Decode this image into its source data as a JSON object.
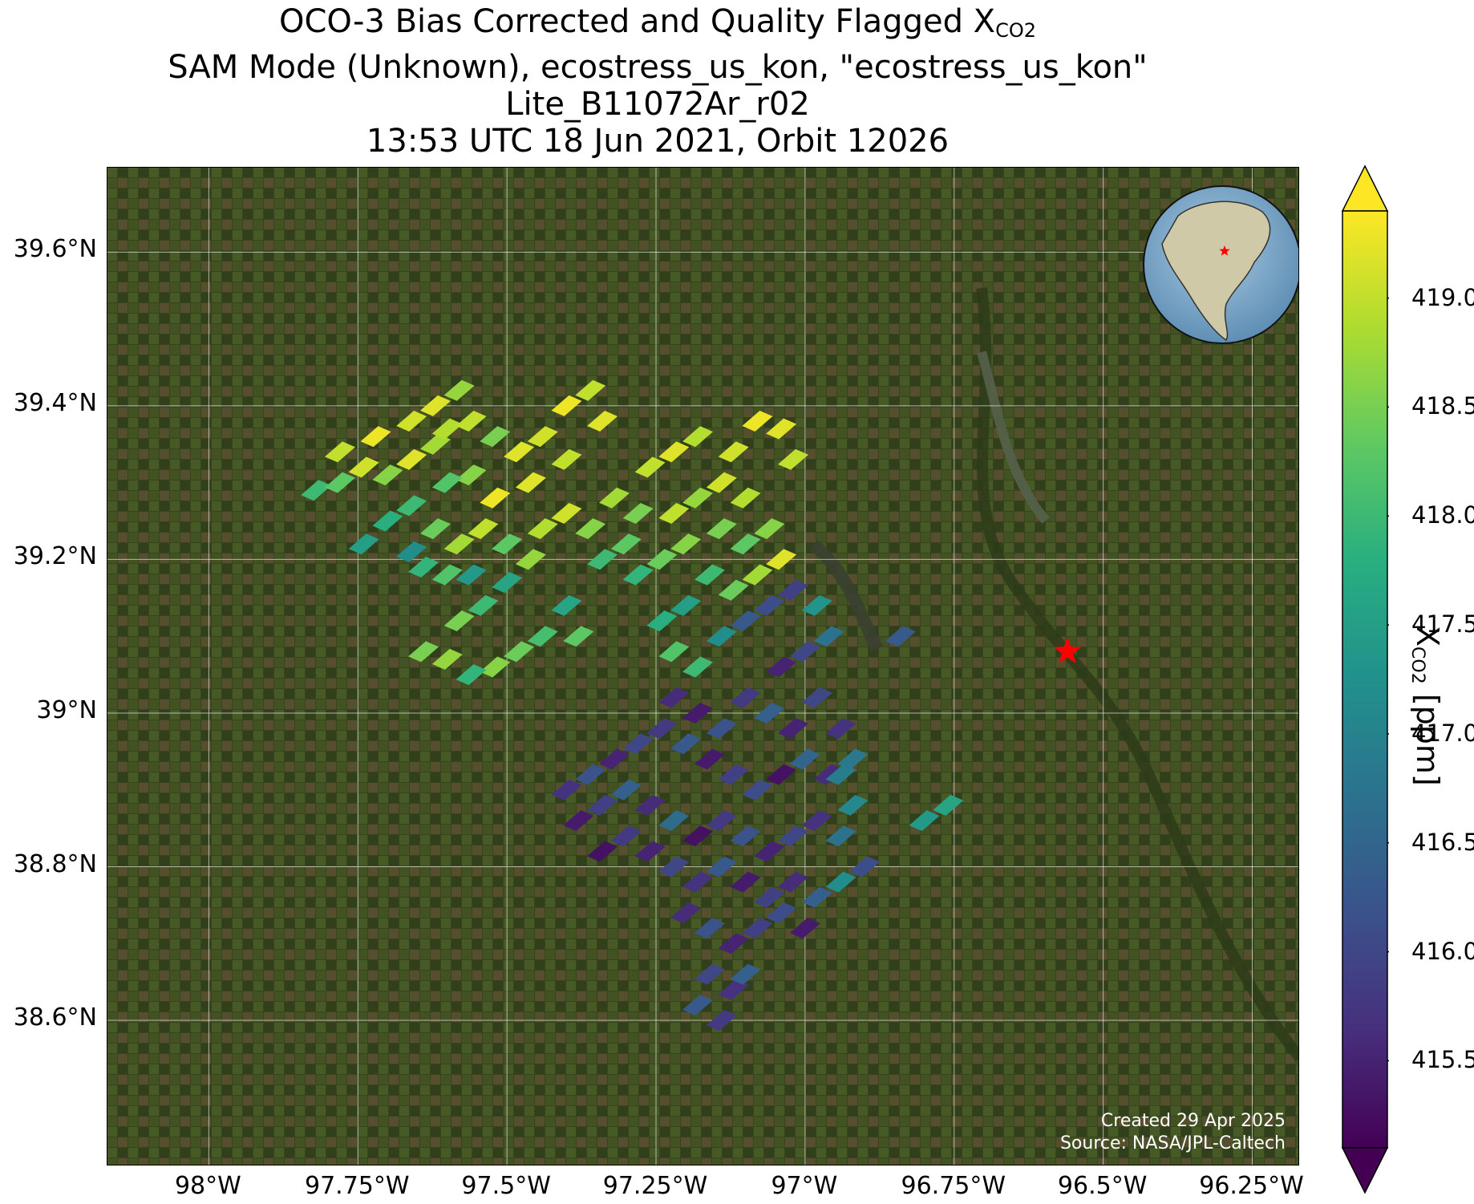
{
  "title": {
    "line1_prefix": "OCO-3 Bias Corrected and Quality Flagged X",
    "line1_sub": "CO2",
    "line2": "SAM Mode (Unknown), ecostress_us_kon, \"ecostress_us_kon\"",
    "line3": "Lite_B11072Ar_r02",
    "line4": "13:53 UTC 18 Jun 2021, Orbit 12026"
  },
  "colorbar": {
    "label_prefix": "X",
    "label_sub": "CO2",
    "label_suffix": " [ppm]",
    "ticks": [
      "415.5",
      "416.0",
      "416.5",
      "417.0",
      "417.5",
      "418.0",
      "418.5",
      "419.0"
    ],
    "range": [
      415.1,
      419.4
    ],
    "colormap": "viridis",
    "extend": "both"
  },
  "credits": {
    "created": "Created 29 Apr 2025",
    "source": "Source: NASA/JPL-Caltech"
  },
  "chart_data": {
    "type": "map",
    "xlabel": "",
    "ylabel": "",
    "lon_range": [
      -98.17,
      -96.17
    ],
    "lat_range": [
      38.41,
      39.71
    ],
    "x_ticks": [
      "98°W",
      "97.75°W",
      "97.5°W",
      "97.25°W",
      "97°W",
      "96.75°W",
      "96.5°W",
      "96.25°W"
    ],
    "x_tick_values": [
      -98.0,
      -97.75,
      -97.5,
      -97.25,
      -97.0,
      -96.75,
      -96.5,
      -96.25
    ],
    "y_ticks": [
      "39.6°N",
      "39.4°N",
      "39.2°N",
      "39°N",
      "38.8°N",
      "38.6°N"
    ],
    "y_tick_values": [
      39.6,
      39.4,
      39.2,
      39.0,
      38.8,
      38.6
    ],
    "grid": true,
    "target_marker": {
      "lon": -96.56,
      "lat": 39.08,
      "color": "#ff0000",
      "symbol": "star"
    },
    "inset_globe": {
      "location": "top-right",
      "center_region": "North America"
    },
    "background": "satellite imagery",
    "footprints": [
      [
        -97.82,
        39.29,
        418.0
      ],
      [
        -97.78,
        39.3,
        418.3
      ],
      [
        -97.74,
        39.32,
        419.1
      ],
      [
        -97.7,
        39.31,
        418.6
      ],
      [
        -97.66,
        39.33,
        419.2
      ],
      [
        -97.62,
        39.35,
        418.8
      ],
      [
        -97.78,
        39.34,
        419.0
      ],
      [
        -97.72,
        39.36,
        419.3
      ],
      [
        -97.66,
        39.38,
        419.1
      ],
      [
        -97.6,
        39.37,
        418.9
      ],
      [
        -97.62,
        39.4,
        419.2
      ],
      [
        -97.58,
        39.42,
        418.7
      ],
      [
        -97.56,
        39.38,
        419.0
      ],
      [
        -97.52,
        39.36,
        418.5
      ],
      [
        -97.48,
        39.34,
        419.2
      ],
      [
        -97.44,
        39.36,
        419.1
      ],
      [
        -97.4,
        39.4,
        419.3
      ],
      [
        -97.36,
        39.42,
        419.0
      ],
      [
        -97.34,
        39.38,
        419.2
      ],
      [
        -97.4,
        39.33,
        419.0
      ],
      [
        -97.46,
        39.3,
        419.2
      ],
      [
        -97.52,
        39.28,
        419.3
      ],
      [
        -97.56,
        39.31,
        418.6
      ],
      [
        -97.6,
        39.3,
        418.2
      ],
      [
        -97.66,
        39.27,
        418.0
      ],
      [
        -97.7,
        39.25,
        417.8
      ],
      [
        -97.74,
        39.22,
        417.5
      ],
      [
        -97.66,
        39.21,
        417.2
      ],
      [
        -97.62,
        39.24,
        418.4
      ],
      [
        -97.58,
        39.22,
        418.8
      ],
      [
        -97.54,
        39.24,
        419.0
      ],
      [
        -97.5,
        39.22,
        418.3
      ],
      [
        -97.46,
        39.2,
        418.7
      ],
      [
        -97.5,
        39.17,
        417.6
      ],
      [
        -97.54,
        39.14,
        418.0
      ],
      [
        -97.58,
        39.12,
        418.5
      ],
      [
        -97.56,
        39.18,
        417.4
      ],
      [
        -97.6,
        39.18,
        418.2
      ],
      [
        -97.64,
        39.19,
        417.9
      ],
      [
        -97.44,
        39.24,
        418.9
      ],
      [
        -97.4,
        39.26,
        419.1
      ],
      [
        -97.36,
        39.24,
        418.6
      ],
      [
        -97.32,
        39.28,
        418.8
      ],
      [
        -97.28,
        39.26,
        418.5
      ],
      [
        -97.3,
        39.22,
        418.3
      ],
      [
        -97.34,
        39.2,
        418.0
      ],
      [
        -97.28,
        39.18,
        417.9
      ],
      [
        -97.24,
        39.2,
        418.4
      ],
      [
        -97.2,
        39.22,
        418.6
      ],
      [
        -97.22,
        39.26,
        419.0
      ],
      [
        -97.18,
        39.28,
        418.7
      ],
      [
        -97.14,
        39.3,
        419.1
      ],
      [
        -97.1,
        39.28,
        418.9
      ],
      [
        -97.14,
        39.24,
        418.5
      ],
      [
        -97.1,
        39.22,
        418.3
      ],
      [
        -97.06,
        39.24,
        418.6
      ],
      [
        -97.04,
        39.2,
        419.2
      ],
      [
        -97.08,
        39.18,
        418.8
      ],
      [
        -97.12,
        39.16,
        418.4
      ],
      [
        -97.16,
        39.18,
        418.0
      ],
      [
        -97.2,
        39.14,
        417.5
      ],
      [
        -97.24,
        39.12,
        417.8
      ],
      [
        -97.22,
        39.08,
        418.2
      ],
      [
        -97.18,
        39.06,
        418.0
      ],
      [
        -97.14,
        39.1,
        417.2
      ],
      [
        -97.1,
        39.12,
        416.3
      ],
      [
        -97.06,
        39.14,
        416.1
      ],
      [
        -97.02,
        39.16,
        415.9
      ],
      [
        -96.98,
        39.14,
        417.3
      ],
      [
        -96.96,
        39.1,
        416.7
      ],
      [
        -97.26,
        39.32,
        419.0
      ],
      [
        -97.22,
        39.34,
        419.2
      ],
      [
        -97.18,
        39.36,
        418.9
      ],
      [
        -97.12,
        39.34,
        419.1
      ],
      [
        -97.08,
        39.38,
        419.3
      ],
      [
        -97.04,
        39.37,
        419.2
      ],
      [
        -97.02,
        39.33,
        419.0
      ],
      [
        -97.44,
        39.1,
        418.1
      ],
      [
        -97.48,
        39.08,
        418.4
      ],
      [
        -97.52,
        39.06,
        418.6
      ],
      [
        -97.56,
        39.05,
        417.9
      ],
      [
        -97.6,
        39.07,
        418.7
      ],
      [
        -97.64,
        39.08,
        418.5
      ],
      [
        -97.38,
        39.1,
        418.3
      ],
      [
        -97.4,
        39.14,
        417.6
      ],
      [
        -97.22,
        39.02,
        415.6
      ],
      [
        -97.18,
        39.0,
        415.4
      ],
      [
        -97.14,
        38.98,
        416.2
      ],
      [
        -97.1,
        39.02,
        415.8
      ],
      [
        -97.06,
        39.0,
        416.4
      ],
      [
        -97.02,
        38.98,
        415.5
      ],
      [
        -96.98,
        39.02,
        416.0
      ],
      [
        -96.94,
        38.98,
        415.7
      ],
      [
        -96.92,
        38.94,
        416.8
      ],
      [
        -96.96,
        38.92,
        415.6
      ],
      [
        -97.0,
        38.94,
        416.5
      ],
      [
        -97.04,
        38.92,
        415.3
      ],
      [
        -97.08,
        38.9,
        416.1
      ],
      [
        -97.12,
        38.92,
        415.9
      ],
      [
        -97.16,
        38.94,
        415.4
      ],
      [
        -97.2,
        38.96,
        416.3
      ],
      [
        -97.24,
        38.98,
        415.8
      ],
      [
        -97.28,
        38.96,
        416.0
      ],
      [
        -97.32,
        38.94,
        415.5
      ],
      [
        -97.36,
        38.92,
        416.2
      ],
      [
        -97.4,
        38.9,
        415.7
      ],
      [
        -97.38,
        38.86,
        415.4
      ],
      [
        -97.34,
        38.88,
        415.9
      ],
      [
        -97.3,
        38.9,
        416.4
      ],
      [
        -97.26,
        38.88,
        415.6
      ],
      [
        -97.22,
        38.86,
        416.6
      ],
      [
        -97.18,
        38.84,
        415.3
      ],
      [
        -97.14,
        38.86,
        415.8
      ],
      [
        -97.1,
        38.84,
        416.2
      ],
      [
        -97.06,
        38.82,
        415.5
      ],
      [
        -97.02,
        38.84,
        416.0
      ],
      [
        -96.98,
        38.86,
        415.7
      ],
      [
        -96.94,
        38.84,
        416.7
      ],
      [
        -96.9,
        38.8,
        416.1
      ],
      [
        -96.94,
        38.78,
        417.2
      ],
      [
        -96.98,
        38.76,
        416.4
      ],
      [
        -97.02,
        38.78,
        415.6
      ],
      [
        -97.06,
        38.76,
        415.9
      ],
      [
        -97.1,
        38.78,
        415.4
      ],
      [
        -97.14,
        38.8,
        416.3
      ],
      [
        -97.18,
        38.78,
        415.7
      ],
      [
        -97.22,
        38.8,
        416.0
      ],
      [
        -97.26,
        38.82,
        415.5
      ],
      [
        -97.3,
        38.84,
        415.8
      ],
      [
        -97.34,
        38.82,
        415.3
      ],
      [
        -97.2,
        38.74,
        415.6
      ],
      [
        -97.16,
        38.72,
        416.2
      ],
      [
        -97.12,
        38.7,
        415.5
      ],
      [
        -97.08,
        38.72,
        415.9
      ],
      [
        -97.04,
        38.74,
        416.1
      ],
      [
        -97.0,
        38.72,
        415.4
      ],
      [
        -97.16,
        38.66,
        416.0
      ],
      [
        -97.12,
        38.64,
        415.7
      ],
      [
        -97.18,
        38.62,
        416.3
      ],
      [
        -97.14,
        38.6,
        415.8
      ],
      [
        -97.1,
        38.66,
        416.4
      ],
      [
        -96.94,
        38.92,
        416.9
      ],
      [
        -96.92,
        38.88,
        417.1
      ],
      [
        -96.8,
        38.86,
        417.4
      ],
      [
        -96.76,
        38.88,
        417.6
      ],
      [
        -96.84,
        39.1,
        416.3
      ],
      [
        -97.04,
        39.06,
        415.5
      ],
      [
        -97.0,
        39.08,
        416.0
      ]
    ]
  }
}
